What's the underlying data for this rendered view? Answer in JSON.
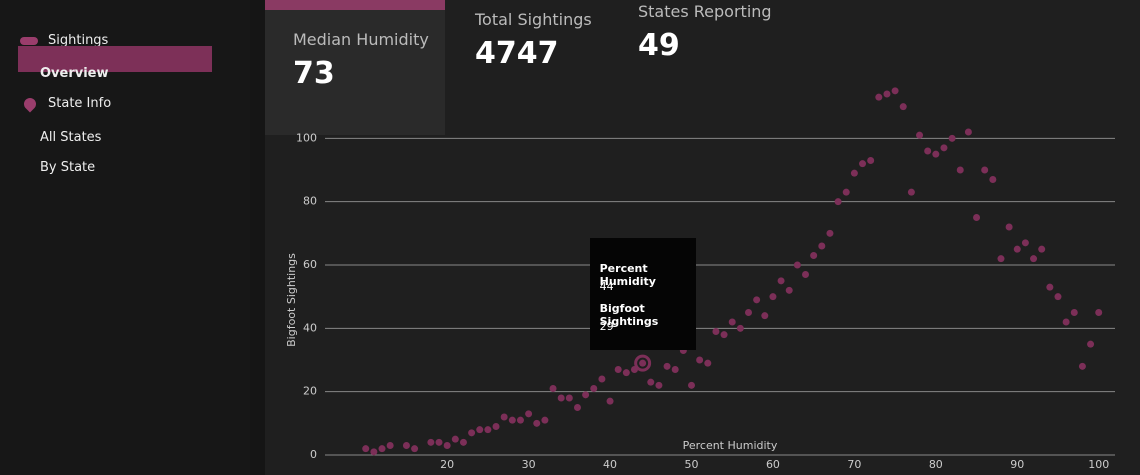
{
  "sidebar": {
    "items": [
      {
        "label": "Sightings"
      },
      {
        "label": "Overview"
      },
      {
        "label": "State Info"
      },
      {
        "label": "All States"
      },
      {
        "label": "By State"
      }
    ]
  },
  "kpis": [
    {
      "label": "Median Humidity",
      "value": 73
    },
    {
      "label": "Total Sightings",
      "value": 4747
    },
    {
      "label": "States Reporting",
      "value": 49
    }
  ],
  "chart_data": {
    "type": "scatter",
    "x_label": "Percent Humidity",
    "y_label": "Bigfoot Sightings",
    "color": "#7c2f58",
    "x": [
      10,
      11,
      12,
      13,
      15,
      16,
      18,
      19,
      20,
      21,
      22,
      23,
      24,
      25,
      26,
      27,
      28,
      29,
      30,
      31,
      32,
      33,
      34,
      35,
      36,
      37,
      38,
      39,
      40,
      41,
      42,
      43,
      44,
      45,
      46,
      47,
      48,
      49,
      50,
      51,
      52,
      53,
      54,
      55,
      56,
      57,
      58,
      59,
      60,
      61,
      62,
      63,
      64,
      65,
      66,
      67,
      68,
      69,
      70,
      71,
      72,
      73,
      74,
      75,
      76,
      77,
      78,
      79,
      80,
      81,
      82,
      83,
      84,
      85,
      86,
      87,
      88,
      89,
      90,
      91,
      92,
      93,
      94,
      95,
      96,
      97,
      98,
      99,
      100
    ],
    "values": [
      2,
      1,
      2,
      3,
      3,
      2,
      4,
      4,
      3,
      5,
      4,
      7,
      8,
      8,
      9,
      12,
      11,
      11,
      13,
      10,
      11,
      21,
      18,
      18,
      15,
      19,
      21,
      24,
      17,
      27,
      26,
      27,
      29,
      23,
      22,
      28,
      27,
      33,
      22,
      30,
      29,
      39,
      38,
      42,
      40,
      45,
      49,
      44,
      50,
      55,
      52,
      60,
      57,
      63,
      66,
      70,
      80,
      83,
      89,
      92,
      93,
      113,
      114,
      115,
      110,
      83,
      101,
      96,
      95,
      97,
      100,
      90,
      102,
      75,
      90,
      87,
      62,
      72,
      65,
      67,
      62,
      65,
      53,
      50,
      42,
      45,
      28,
      35,
      45
    ],
    "xlim": [
      5,
      102
    ],
    "ylim": [
      0,
      120
    ],
    "xticks": [
      20,
      30,
      40,
      50,
      60,
      70,
      80,
      90,
      100
    ],
    "yticks": [
      0,
      20,
      40,
      60,
      80,
      100
    ],
    "grid": true,
    "tooltip": {
      "x_title": "Percent Humidity",
      "y_title": "Bigfoot Sightings"
    }
  }
}
